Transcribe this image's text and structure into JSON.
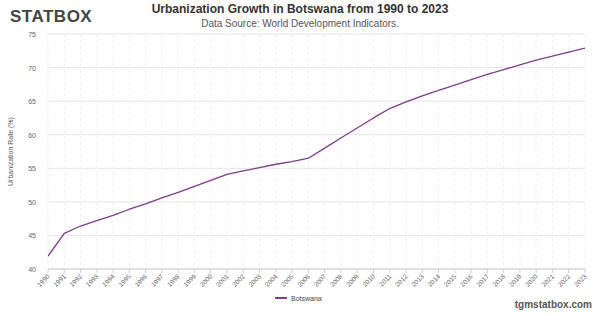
{
  "chart_data": {
    "type": "line",
    "title": "Urbanization Growth in Botswana from 1990 to 2023",
    "subtitle": "Data Source: World Development Indicators.",
    "y_label": "Urbanization Rate (%)",
    "annotations": [
      "STATBOX",
      "tgmstatbox.com"
    ],
    "categories": [
      "1990",
      "1991",
      "1992",
      "1993",
      "1994",
      "1995",
      "1996",
      "1997",
      "1998",
      "1999",
      "2000",
      "2001",
      "2002",
      "2003",
      "2004",
      "2005",
      "2006",
      "2007",
      "2008",
      "2009",
      "2010",
      "2011",
      "2012",
      "2013",
      "2014",
      "2015",
      "2016",
      "2017",
      "2018",
      "2019",
      "2020",
      "2021",
      "2022",
      "2023"
    ],
    "series": [
      {
        "name": "Botswana",
        "color": "#7e3b8a",
        "values": [
          41.9,
          45.3,
          46.4,
          47.2,
          48.0,
          48.9,
          49.7,
          50.6,
          51.4,
          52.3,
          53.2,
          54.1,
          54.6,
          55.1,
          55.6,
          56.0,
          56.5,
          58.0,
          59.5,
          61.0,
          62.5,
          63.9,
          64.9,
          65.8,
          66.6,
          67.4,
          68.2,
          69.0,
          69.7,
          70.4,
          71.1,
          71.7,
          72.3,
          72.9
        ]
      }
    ],
    "ylim": [
      40,
      75
    ],
    "yticks": [
      40,
      45,
      50,
      55,
      60,
      65,
      70,
      75
    ],
    "grid": true,
    "legend": "bottom"
  }
}
